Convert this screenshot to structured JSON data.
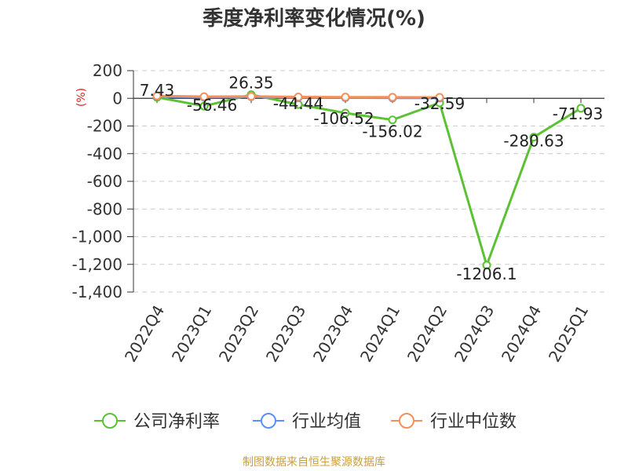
{
  "chart_data": {
    "type": "line",
    "title": "季度净利率变化情况(%)",
    "ylabel": "(%)",
    "categories": [
      "2022Q4",
      "2023Q1",
      "2023Q2",
      "2023Q3",
      "2023Q4",
      "2024Q1",
      "2024Q2",
      "2024Q3",
      "2024Q4",
      "2025Q1"
    ],
    "ylim": [
      -1400,
      200
    ],
    "yticks": [
      200,
      0,
      -200,
      -400,
      -600,
      -800,
      -1000,
      -1200,
      -1400
    ],
    "ytick_labels": [
      "200",
      "0",
      "-200",
      "-400",
      "-600",
      "-800",
      "-1,000",
      "-1,200",
      "-1,400"
    ],
    "grid": true,
    "legend_position": "bottom",
    "series": [
      {
        "name": "公司净利率",
        "color": "#5cc135",
        "values": [
          7.43,
          -56.46,
          26.35,
          -44.44,
          -106.52,
          -156.02,
          -32.59,
          -1206.1,
          -280.63,
          -71.93
        ],
        "labels": [
          "7.43",
          "-56.46",
          "26.35",
          "-44.44",
          "-106.52",
          "-156.02",
          "-32.59",
          "-1206.1",
          "-280.63",
          "-71.93"
        ]
      },
      {
        "name": "行业均值",
        "color": "#5b8ff9",
        "values": [
          15,
          8,
          12,
          6,
          5,
          3,
          2,
          null,
          null,
          null
        ]
      },
      {
        "name": "行业中位数",
        "color": "#f5905a",
        "values": [
          18,
          12,
          14,
          10,
          9,
          8,
          7,
          null,
          null,
          null
        ]
      }
    ]
  },
  "footer": "制图数据来自恒生聚源数据库"
}
